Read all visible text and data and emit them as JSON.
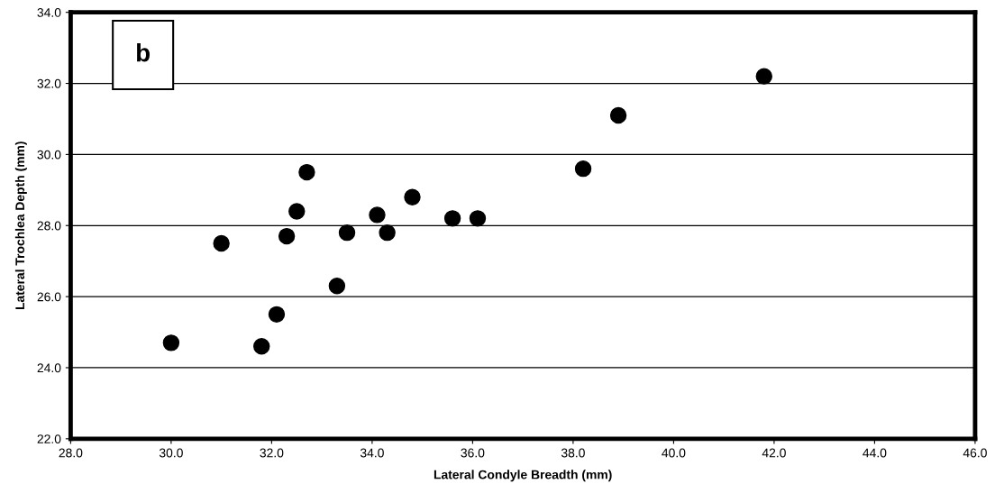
{
  "chart_data": {
    "type": "scatter",
    "xlabel": "Lateral Condyle Breadth (mm)",
    "ylabel": "Lateral Trochlea Depth (mm)",
    "annotations": [
      "b"
    ],
    "x": [
      30.0,
      31.0,
      31.8,
      32.1,
      32.3,
      32.5,
      32.7,
      33.3,
      33.5,
      34.1,
      34.3,
      34.8,
      35.6,
      36.1,
      38.2,
      38.9,
      41.8
    ],
    "series": [
      {
        "color": "#000000",
        "values": [
          24.7,
          27.5,
          24.6,
          25.5,
          27.7,
          28.4,
          29.5,
          26.3,
          27.8,
          28.3,
          27.8,
          28.8,
          28.2,
          28.2,
          29.6,
          31.1,
          32.2
        ]
      }
    ],
    "xlim": [
      28,
      46
    ],
    "xticks": [
      {
        "value": 28,
        "label": "28.0"
      },
      {
        "value": 30,
        "label": "30.0"
      },
      {
        "value": 32,
        "label": "32.0"
      },
      {
        "value": 34,
        "label": "34.0"
      },
      {
        "value": 36,
        "label": "36.0"
      },
      {
        "value": 38,
        "label": "38.0"
      },
      {
        "value": 40,
        "label": "40.0"
      },
      {
        "value": 42,
        "label": "42.0"
      },
      {
        "value": 44,
        "label": "44.0"
      },
      {
        "value": 46,
        "label": "46.0"
      }
    ],
    "ylim": [
      22,
      34
    ],
    "yticks": [
      {
        "value": 22,
        "label": "22.0"
      },
      {
        "value": 24,
        "label": "24.0"
      },
      {
        "value": 26,
        "label": "26.0"
      },
      {
        "value": 28,
        "label": "28.0"
      },
      {
        "value": 30,
        "label": "30.0"
      },
      {
        "value": 32,
        "label": "32.0"
      },
      {
        "value": 34,
        "label": "34.0"
      }
    ],
    "grid": "y",
    "marker": "circle"
  }
}
